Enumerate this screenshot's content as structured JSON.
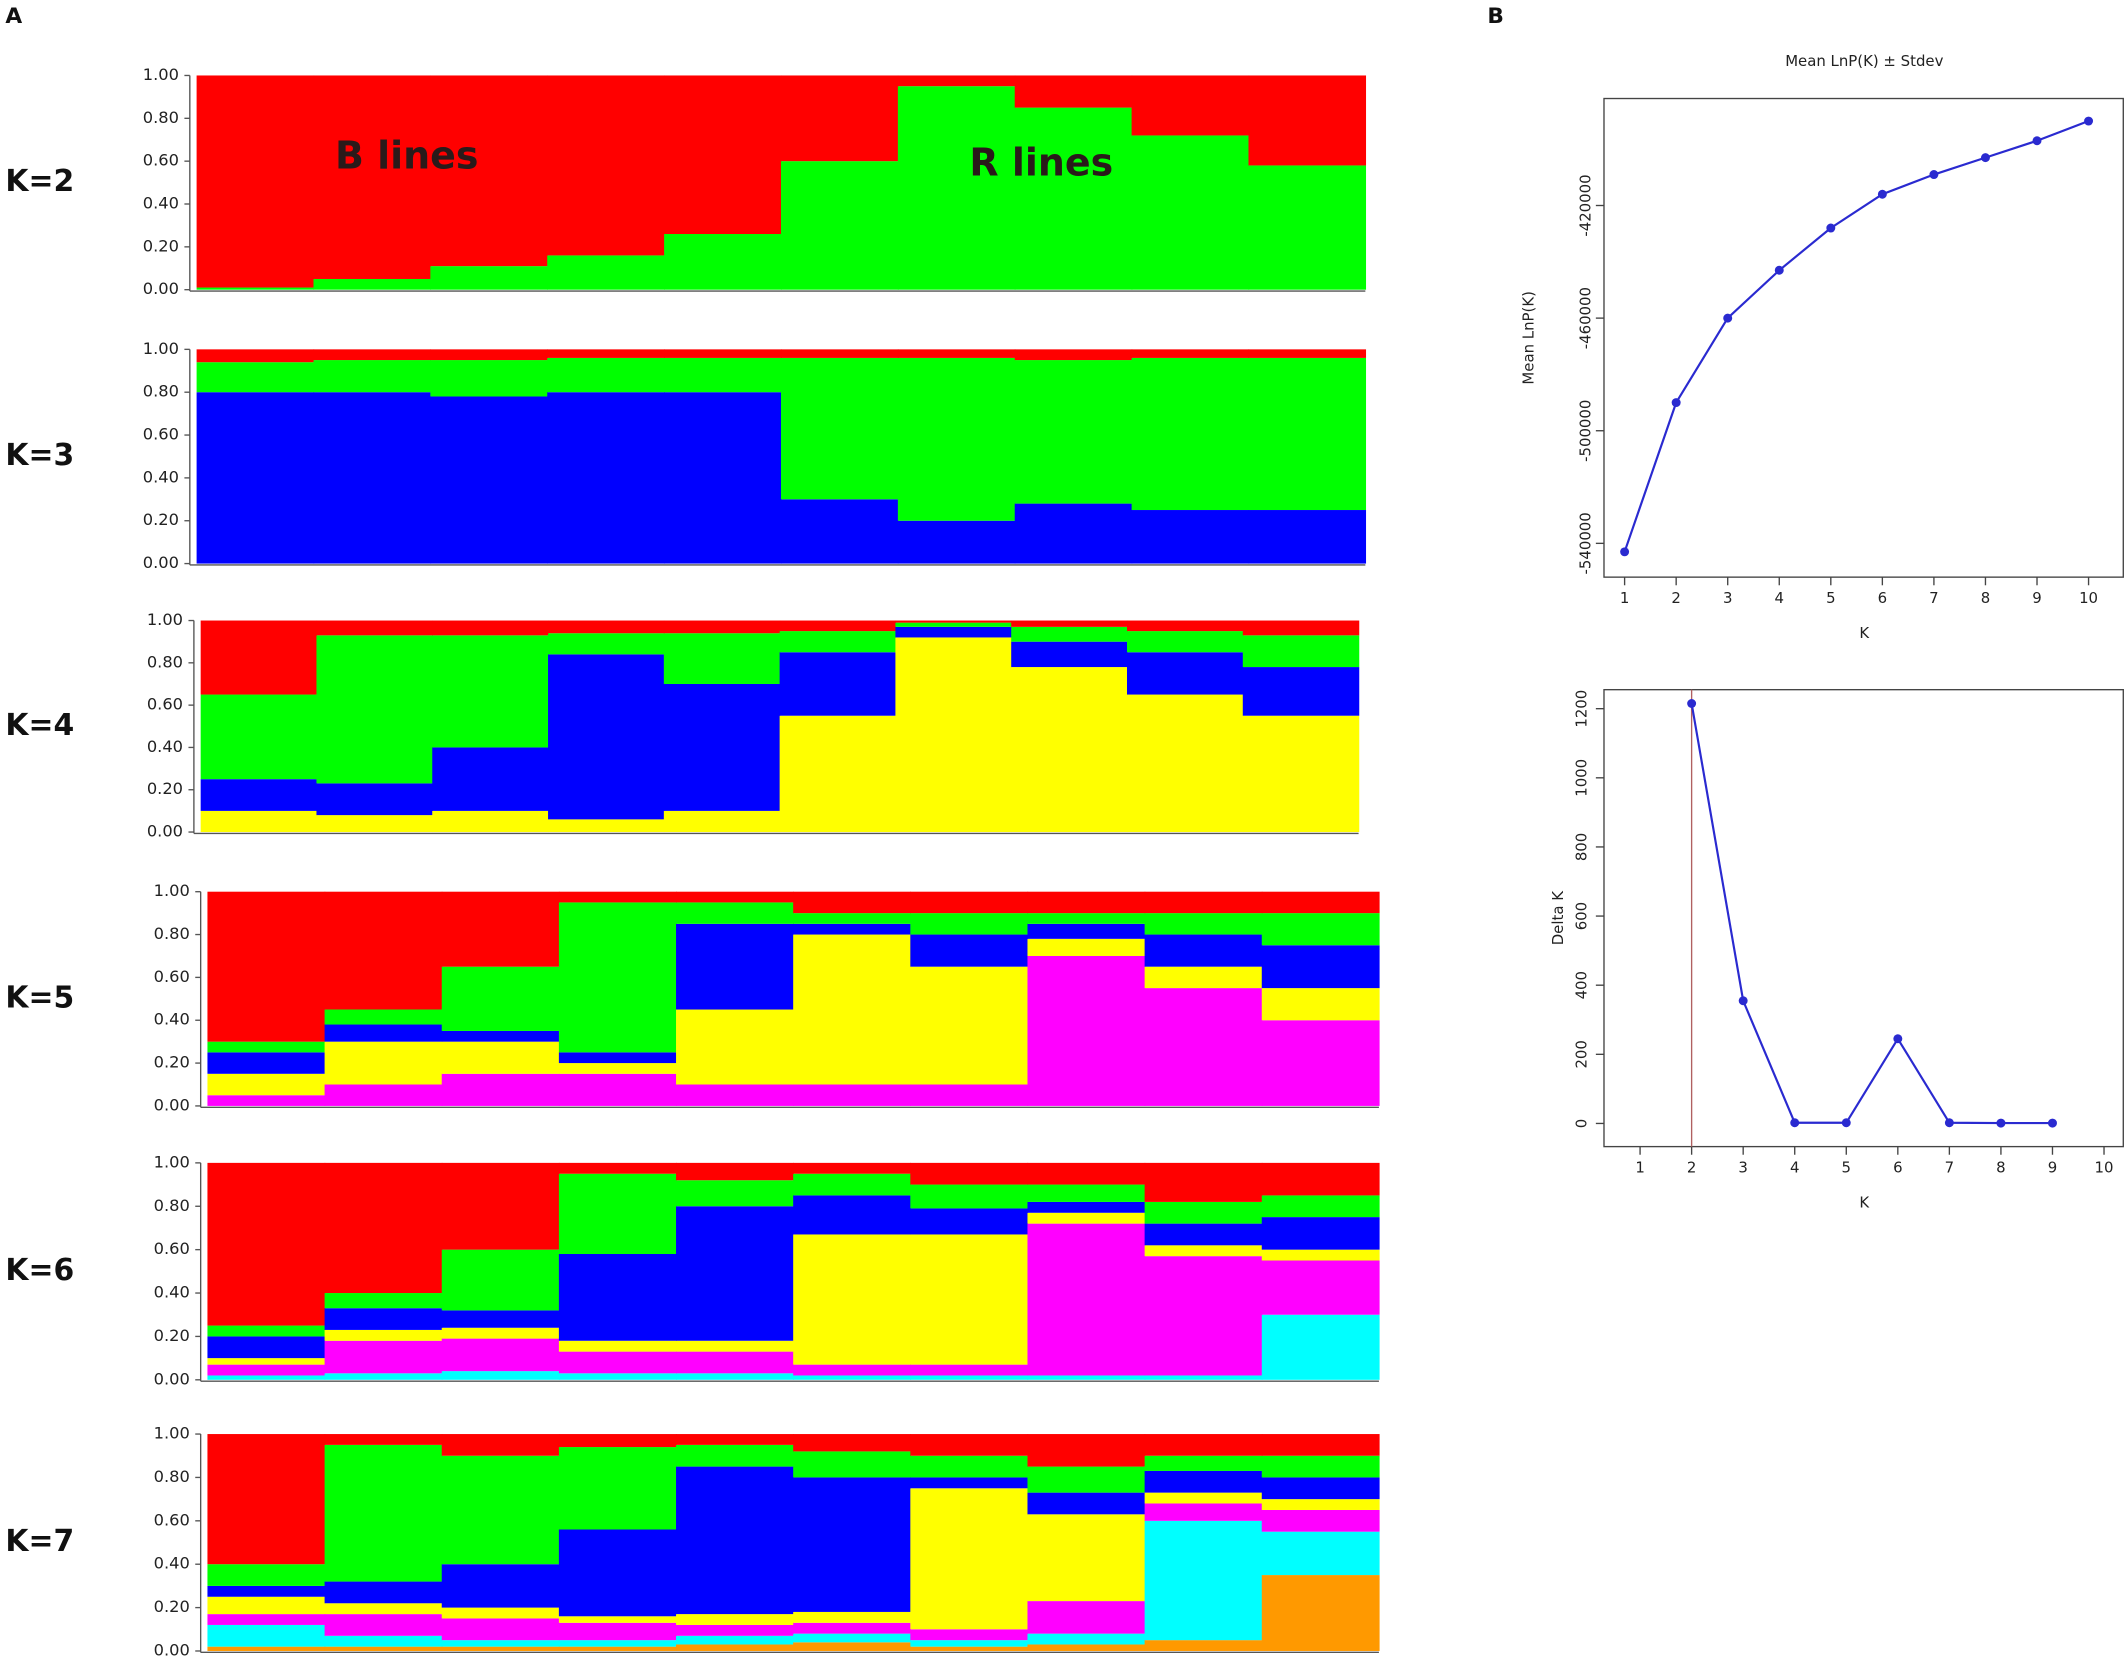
{
  "figure_labels": [
    "A",
    "B"
  ],
  "chart_data": [
    {
      "type": "bar",
      "stacked": true,
      "label": "K=2",
      "categories": [
        null,
        null,
        null,
        null,
        null,
        null,
        null,
        null,
        null,
        null
      ],
      "annotations": [
        "B lines",
        "R lines"
      ],
      "series": [
        {
          "color": "#00ff00",
          "values": [
            0.01,
            0.05,
            0.11,
            0.16,
            0.26,
            0.6,
            0.95,
            0.85,
            0.72,
            0.58
          ]
        },
        {
          "color": "#ff0000",
          "values": [
            0.99,
            0.95,
            0.89,
            0.84,
            0.74,
            0.4,
            0.05,
            0.15,
            0.28,
            0.42
          ]
        }
      ],
      "ylim": [
        0,
        1
      ],
      "yticks": [
        {
          "value": 0,
          "label": "0.00"
        },
        {
          "value": 0.2,
          "label": "0.20"
        },
        {
          "value": 0.4,
          "label": "0.40"
        },
        {
          "value": 0.6,
          "label": "0.60"
        },
        {
          "value": 0.8,
          "label": "0.80"
        },
        {
          "value": 1,
          "label": "1.00"
        }
      ]
    },
    {
      "type": "bar",
      "stacked": true,
      "label": "K=3",
      "categories": [
        null,
        null,
        null,
        null,
        null,
        null,
        null,
        null,
        null,
        null
      ],
      "series": [
        {
          "color": "#0000ff",
          "values": [
            0.8,
            0.8,
            0.78,
            0.8,
            0.8,
            0.3,
            0.2,
            0.28,
            0.25,
            0.25
          ]
        },
        {
          "color": "#00ff00",
          "values": [
            0.14,
            0.15,
            0.17,
            0.16,
            0.16,
            0.66,
            0.76,
            0.67,
            0.71,
            0.71
          ]
        },
        {
          "color": "#ff0000",
          "values": [
            0.06,
            0.05,
            0.05,
            0.04,
            0.04,
            0.04,
            0.04,
            0.05,
            0.04,
            0.04
          ]
        }
      ],
      "ylim": [
        0,
        1
      ],
      "yticks": [
        {
          "value": 0,
          "label": "0.00"
        },
        {
          "value": 0.2,
          "label": "0.20"
        },
        {
          "value": 0.4,
          "label": "0.40"
        },
        {
          "value": 0.6,
          "label": "0.60"
        },
        {
          "value": 0.8,
          "label": "0.80"
        },
        {
          "value": 1,
          "label": "1.00"
        }
      ]
    },
    {
      "type": "bar",
      "stacked": true,
      "label": "K=4",
      "categories": [
        null,
        null,
        null,
        null,
        null,
        null,
        null,
        null,
        null,
        null
      ],
      "series": [
        {
          "color": "#ffff00",
          "values": [
            0.1,
            0.08,
            0.1,
            0.06,
            0.1,
            0.55,
            0.92,
            0.78,
            0.65,
            0.55
          ]
        },
        {
          "color": "#0000ff",
          "values": [
            0.15,
            0.15,
            0.3,
            0.78,
            0.6,
            0.3,
            0.05,
            0.12,
            0.2,
            0.23
          ]
        },
        {
          "color": "#00ff00",
          "values": [
            0.4,
            0.7,
            0.53,
            0.1,
            0.24,
            0.1,
            0.02,
            0.07,
            0.1,
            0.15
          ]
        },
        {
          "color": "#ff0000",
          "values": [
            0.35,
            0.07,
            0.07,
            0.06,
            0.06,
            0.05,
            0.01,
            0.03,
            0.05,
            0.07
          ]
        }
      ],
      "ylim": [
        0,
        1
      ],
      "yticks": [
        {
          "value": 0,
          "label": "0.00"
        },
        {
          "value": 0.2,
          "label": "0.20"
        },
        {
          "value": 0.4,
          "label": "0.40"
        },
        {
          "value": 0.6,
          "label": "0.60"
        },
        {
          "value": 0.8,
          "label": "0.80"
        },
        {
          "value": 1,
          "label": "1.00"
        }
      ]
    },
    {
      "type": "bar",
      "stacked": true,
      "label": "K=5",
      "categories": [
        null,
        null,
        null,
        null,
        null,
        null,
        null,
        null,
        null,
        null
      ],
      "series": [
        {
          "color": "#ff00ff",
          "values": [
            0.05,
            0.1,
            0.15,
            0.15,
            0.1,
            0.1,
            0.1,
            0.7,
            0.55,
            0.4
          ]
        },
        {
          "color": "#ffff00",
          "values": [
            0.1,
            0.2,
            0.15,
            0.05,
            0.35,
            0.7,
            0.55,
            0.08,
            0.1,
            0.15
          ]
        },
        {
          "color": "#0000ff",
          "values": [
            0.1,
            0.08,
            0.05,
            0.05,
            0.4,
            0.05,
            0.15,
            0.07,
            0.15,
            0.2
          ]
        },
        {
          "color": "#00ff00",
          "values": [
            0.05,
            0.07,
            0.3,
            0.7,
            0.1,
            0.05,
            0.1,
            0.05,
            0.1,
            0.15
          ]
        },
        {
          "color": "#ff0000",
          "values": [
            0.7,
            0.55,
            0.35,
            0.05,
            0.05,
            0.1,
            0.1,
            0.1,
            0.1,
            0.1
          ]
        }
      ],
      "ylim": [
        0,
        1
      ],
      "yticks": [
        {
          "value": 0,
          "label": "0.00"
        },
        {
          "value": 0.2,
          "label": "0.20"
        },
        {
          "value": 0.4,
          "label": "0.40"
        },
        {
          "value": 0.6,
          "label": "0.60"
        },
        {
          "value": 0.8,
          "label": "0.80"
        },
        {
          "value": 1,
          "label": "1.00"
        }
      ]
    },
    {
      "type": "bar",
      "stacked": true,
      "label": "K=6",
      "categories": [
        null,
        null,
        null,
        null,
        null,
        null,
        null,
        null,
        null,
        null
      ],
      "series": [
        {
          "color": "#00ffff",
          "values": [
            0.02,
            0.03,
            0.04,
            0.03,
            0.03,
            0.02,
            0.02,
            0.02,
            0.02,
            0.3
          ]
        },
        {
          "color": "#ff00ff",
          "values": [
            0.05,
            0.15,
            0.15,
            0.1,
            0.1,
            0.05,
            0.05,
            0.7,
            0.55,
            0.25
          ]
        },
        {
          "color": "#ffff00",
          "values": [
            0.03,
            0.05,
            0.05,
            0.05,
            0.05,
            0.6,
            0.6,
            0.05,
            0.05,
            0.05
          ]
        },
        {
          "color": "#0000ff",
          "values": [
            0.1,
            0.1,
            0.08,
            0.4,
            0.62,
            0.18,
            0.12,
            0.05,
            0.1,
            0.15
          ]
        },
        {
          "color": "#00ff00",
          "values": [
            0.05,
            0.07,
            0.28,
            0.37,
            0.12,
            0.1,
            0.11,
            0.08,
            0.1,
            0.1
          ]
        },
        {
          "color": "#ff0000",
          "values": [
            0.75,
            0.6,
            0.4,
            0.05,
            0.08,
            0.05,
            0.1,
            0.1,
            0.18,
            0.15
          ]
        }
      ],
      "ylim": [
        0,
        1
      ],
      "yticks": [
        {
          "value": 0,
          "label": "0.00"
        },
        {
          "value": 0.2,
          "label": "0.20"
        },
        {
          "value": 0.4,
          "label": "0.40"
        },
        {
          "value": 0.6,
          "label": "0.60"
        },
        {
          "value": 0.8,
          "label": "0.80"
        },
        {
          "value": 1,
          "label": "1.00"
        }
      ]
    },
    {
      "type": "bar",
      "stacked": true,
      "label": "K=7",
      "categories": [
        null,
        null,
        null,
        null,
        null,
        null,
        null,
        null,
        null,
        null
      ],
      "series": [
        {
          "color": "#ff9900",
          "values": [
            0.02,
            0.02,
            0.02,
            0.02,
            0.03,
            0.04,
            0.02,
            0.03,
            0.05,
            0.35
          ]
        },
        {
          "color": "#00ffff",
          "values": [
            0.1,
            0.05,
            0.03,
            0.03,
            0.04,
            0.04,
            0.03,
            0.05,
            0.55,
            0.2
          ]
        },
        {
          "color": "#ff00ff",
          "values": [
            0.05,
            0.1,
            0.1,
            0.08,
            0.05,
            0.05,
            0.05,
            0.15,
            0.08,
            0.1
          ]
        },
        {
          "color": "#ffff00",
          "values": [
            0.08,
            0.05,
            0.05,
            0.03,
            0.05,
            0.05,
            0.65,
            0.4,
            0.05,
            0.05
          ]
        },
        {
          "color": "#0000ff",
          "values": [
            0.05,
            0.1,
            0.2,
            0.4,
            0.68,
            0.62,
            0.05,
            0.1,
            0.1,
            0.1
          ]
        },
        {
          "color": "#00ff00",
          "values": [
            0.1,
            0.63,
            0.5,
            0.38,
            0.1,
            0.12,
            0.1,
            0.12,
            0.07,
            0.1
          ]
        },
        {
          "color": "#ff0000",
          "values": [
            0.6,
            0.05,
            0.1,
            0.06,
            0.05,
            0.08,
            0.1,
            0.15,
            0.1,
            0.1
          ]
        }
      ],
      "ylim": [
        0,
        1
      ],
      "yticks": [
        {
          "value": 0,
          "label": "0.00"
        },
        {
          "value": 0.2,
          "label": "0.20"
        },
        {
          "value": 0.4,
          "label": "0.40"
        },
        {
          "value": 0.6,
          "label": "0.60"
        },
        {
          "value": 0.8,
          "label": "0.80"
        },
        {
          "value": 1,
          "label": "1.00"
        }
      ]
    },
    {
      "type": "line",
      "title": "Mean LnP(K) ± Stdev",
      "xlabel": "K",
      "ylabel": "Mean LnP(K)",
      "x": [
        1,
        2,
        3,
        4,
        5,
        6,
        7,
        8,
        9,
        10
      ],
      "values": [
        -543000,
        -490000,
        -460000,
        -443000,
        -428000,
        -416000,
        -409000,
        -403000,
        -397000,
        -390000
      ],
      "color": "#2a2ad0",
      "xlim": [
        0.6,
        10.7
      ],
      "xticks": [
        1,
        2,
        3,
        4,
        5,
        6,
        7,
        8,
        9,
        10
      ],
      "ylim": [
        -552000,
        -382000
      ],
      "yticks": [
        -540000,
        -500000,
        -460000,
        -420000
      ]
    },
    {
      "type": "line",
      "xlabel": "K",
      "ylabel": "Delta K",
      "x": [
        1,
        2,
        3,
        4,
        5,
        6,
        7,
        8,
        9,
        10
      ],
      "values": [
        null,
        1215,
        355,
        2,
        2,
        245,
        2,
        1,
        1,
        null
      ],
      "color": "#2a2ad0",
      "peak_line_color": "#b06060",
      "xlim": [
        0.3,
        10.4
      ],
      "xticks": [
        1,
        2,
        3,
        4,
        5,
        6,
        7,
        8,
        9,
        10
      ],
      "ylim": [
        -67,
        1255
      ],
      "yticks": [
        0,
        200,
        400,
        600,
        800,
        1000,
        1200
      ]
    }
  ]
}
